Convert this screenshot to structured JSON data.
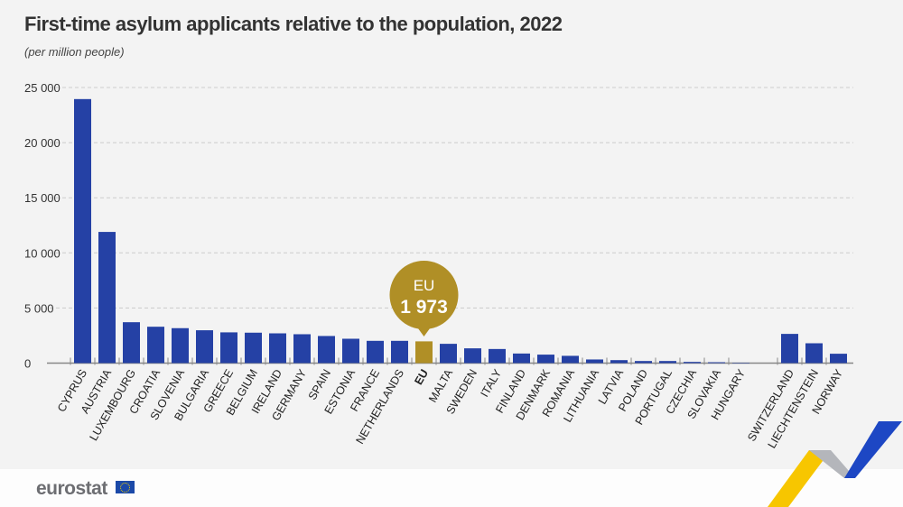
{
  "title": "First-time asylum applicants relative to the population, 2022",
  "subtitle": "(per million people)",
  "logo": "eurostat",
  "chart_data": {
    "type": "bar",
    "title": "First-time asylum applicants relative to the population, 2022",
    "ylabel": "(per million people)",
    "ylim": [
      0,
      25000
    ],
    "yticks": [
      "0",
      "5 000",
      "10 000",
      "15 000",
      "20 000",
      "25 000"
    ],
    "grid": true,
    "categories": [
      "CYPRUS",
      "AUSTRIA",
      "LUXEMBOURG",
      "CROATIA",
      "SLOVENIA",
      "BULGARIA",
      "GREECE",
      "BELGIUM",
      "IRELAND",
      "GERMANY",
      "SPAIN",
      "ESTONIA",
      "FRANCE",
      "NETHERLANDS",
      "EU",
      "MALTA",
      "SWEDEN",
      "ITALY",
      "FINLAND",
      "DENMARK",
      "ROMANIA",
      "LITHUANIA",
      "LATVIA",
      "POLAND",
      "PORTUGAL",
      "CZECHIA",
      "SLOVAKIA",
      "HUNGARY",
      "SWITZERLAND",
      "LIECHTENSTEIN",
      "NORWAY"
    ],
    "values": [
      23950,
      11900,
      3710,
      3300,
      3170,
      2980,
      2790,
      2760,
      2700,
      2620,
      2460,
      2210,
      2020,
      2020,
      1973,
      1750,
      1340,
      1280,
      870,
      770,
      660,
      330,
      270,
      190,
      190,
      110,
      80,
      5,
      2650,
      1800,
      850
    ],
    "highlight": {
      "category": "EU",
      "label": "EU",
      "value_label": "1 973"
    },
    "colors": {
      "bar": "#2541a5",
      "highlight": "#b08f26",
      "grid": "#cccccc"
    }
  }
}
